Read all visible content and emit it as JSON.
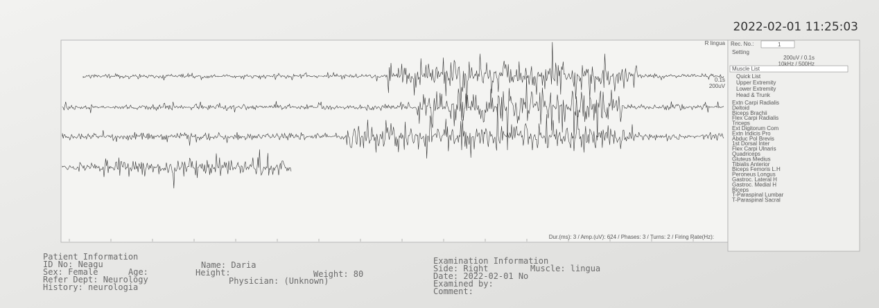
{
  "header": {
    "datetime": "2022-02-01 11:25:03"
  },
  "panel": {
    "muscle": "R lingua",
    "scale_time": "0.1s",
    "scale_amp": "200uV",
    "measurements": "Dur.(ms): 3 / Amp.(uV): 624 / Phases: 3 / Turns: 2 / Firing Rate(Hz):"
  },
  "sidebar": {
    "rec_label": "Rec. No.:",
    "rec_no": "1",
    "setting_label": "Setting",
    "setting_1": "200uV / 0.1s",
    "setting_2": "10kHz / 500Hz",
    "list_title": "Muscle List",
    "groups": [
      "Quick List",
      "Upper Extremity",
      "Lower Extremity",
      "Head & Trunk"
    ],
    "muscles": [
      "Extn Carpi Radialis",
      "Deltoid",
      "Biceps Brachii",
      "Flex Carpi Radialis",
      "Triceps",
      "Ext Digitorum Com",
      "Extn Indicis Pro",
      "Abduc Pol Brevis",
      "1st Dorsal Inter",
      "Flex Carpi Ulnaris",
      "Quadriceps",
      "Gluteus Medius",
      "Tibialis Anterior",
      "Biceps Femoris L.H",
      "Peroneus Longus",
      "Gastroc. Lateral H",
      "Gastroc. Medial H",
      "Biceps",
      "T-Paraspinal Lumbar",
      "T-Paraspinal Sacral"
    ]
  },
  "patient": {
    "title": "Patient Information",
    "id": "ID No: Neagu",
    "sex": "Sex: Female",
    "age": "Age:",
    "dept": "Refer Dept: Neurology",
    "history": "History: neurologia",
    "name": "Name: Daria",
    "height": "Height:",
    "weight": "Weight: 80",
    "physician": "Physician: (Unknown)"
  },
  "exam": {
    "title": "Examination Information",
    "side": "Side: Right",
    "muscle": "Muscle: lingua",
    "date": "Date: 2022-02-01 No",
    "examined": "Examined by:",
    "comment": "Comment:"
  }
}
